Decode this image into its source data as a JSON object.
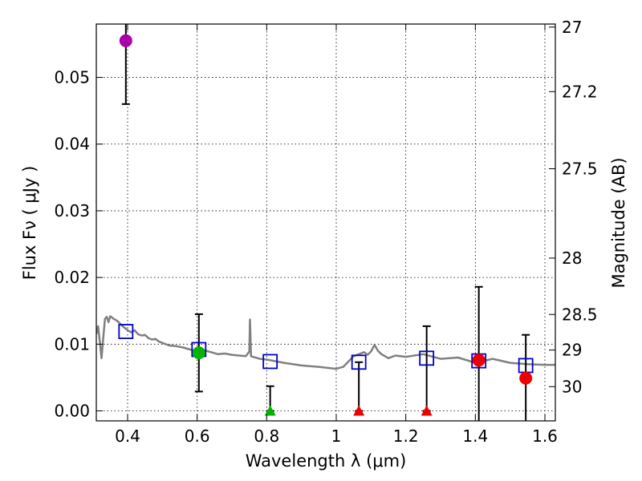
{
  "chart_data": {
    "type": "scatter",
    "xlabel": "Wavelength  λ (μm)",
    "ylabel": "Flux  Fν  ( μJy )",
    "ylabel_right": "Magnitude (AB)",
    "xlim": [
      0.31,
      1.63
    ],
    "ylim": [
      -0.0015,
      0.058
    ],
    "grid": true,
    "x_ticks": [
      {
        "value": 0.4,
        "label": "0.4"
      },
      {
        "value": 0.6,
        "label": "0.6"
      },
      {
        "value": 0.8,
        "label": "0.8"
      },
      {
        "value": 1.0,
        "label": "1"
      },
      {
        "value": 1.2,
        "label": "1.2"
      },
      {
        "value": 1.4,
        "label": "1.4"
      },
      {
        "value": 1.6,
        "label": "1.6"
      }
    ],
    "y_ticks": [
      {
        "value": 0.0,
        "label": "0.00"
      },
      {
        "value": 0.01,
        "label": "0.01"
      },
      {
        "value": 0.02,
        "label": "0.02"
      },
      {
        "value": 0.03,
        "label": "0.03"
      },
      {
        "value": 0.04,
        "label": "0.04"
      },
      {
        "value": 0.05,
        "label": "0.05"
      }
    ],
    "mag_ticks": [
      {
        "mag": 27,
        "label": "27"
      },
      {
        "mag": 27.2,
        "label": "27.2"
      },
      {
        "mag": 27.5,
        "label": "27.5"
      },
      {
        "mag": 28,
        "label": "28"
      },
      {
        "mag": 28.5,
        "label": "28.5"
      },
      {
        "mag": 29,
        "label": "29"
      },
      {
        "mag": 30,
        "label": "30"
      }
    ],
    "model_sed": {
      "name": "model spectrum",
      "color": "#808080",
      "x": [
        0.31,
        0.315,
        0.32,
        0.325,
        0.33,
        0.335,
        0.34,
        0.345,
        0.35,
        0.36,
        0.37,
        0.38,
        0.39,
        0.4,
        0.41,
        0.42,
        0.43,
        0.44,
        0.45,
        0.46,
        0.47,
        0.48,
        0.49,
        0.5,
        0.52,
        0.54,
        0.56,
        0.58,
        0.6,
        0.62,
        0.64,
        0.66,
        0.68,
        0.7,
        0.72,
        0.74,
        0.75,
        0.752,
        0.755,
        0.76,
        0.78,
        0.8,
        0.85,
        0.9,
        0.95,
        1.0,
        1.02,
        1.05,
        1.08,
        1.09,
        1.1,
        1.11,
        1.12,
        1.13,
        1.15,
        1.17,
        1.2,
        1.25,
        1.3,
        1.35,
        1.4,
        1.45,
        1.5,
        1.55,
        1.6,
        1.63
      ],
      "y": [
        0.0115,
        0.0127,
        0.0105,
        0.0079,
        0.011,
        0.0138,
        0.0141,
        0.0133,
        0.0142,
        0.0138,
        0.0135,
        0.013,
        0.0125,
        0.0121,
        0.0118,
        0.0121,
        0.0115,
        0.0113,
        0.0114,
        0.0109,
        0.0107,
        0.0108,
        0.0104,
        0.0102,
        0.0098,
        0.0097,
        0.0095,
        0.0092,
        0.0089,
        0.0091,
        0.0088,
        0.0085,
        0.0086,
        0.0084,
        0.0083,
        0.0082,
        0.0089,
        0.0137,
        0.0082,
        0.0081,
        0.0078,
        0.0077,
        0.0072,
        0.0068,
        0.0066,
        0.0063,
        0.0066,
        0.0082,
        0.0088,
        0.0084,
        0.0089,
        0.0099,
        0.009,
        0.0085,
        0.0079,
        0.0083,
        0.0081,
        0.0085,
        0.0078,
        0.008,
        0.0072,
        0.0078,
        0.0072,
        0.007,
        0.0069,
        0.0069
      ]
    },
    "model_photometry": {
      "name": "model band flux",
      "color": "#0000cc",
      "x": [
        0.395,
        0.605,
        0.81,
        1.065,
        1.26,
        1.41,
        1.545
      ],
      "y": [
        0.0119,
        0.0092,
        0.0074,
        0.0073,
        0.0079,
        0.0075,
        0.0068
      ]
    },
    "detections": [
      {
        "x": 0.395,
        "y": 0.0555,
        "yerr": 0.0095,
        "color": "#aa00aa"
      },
      {
        "x": 0.605,
        "y": 0.0087,
        "yerr": 0.0058,
        "color": "#00b400"
      },
      {
        "x": 1.41,
        "y": 0.0076,
        "yerr": 0.011,
        "color": "#ee0000"
      },
      {
        "x": 1.545,
        "y": 0.0049,
        "yerr": 0.0065,
        "color": "#ee0000"
      }
    ],
    "upper_limits": [
      {
        "x": 0.81,
        "y": 0.0,
        "yerr_up": 0.0037,
        "color": "#00b400"
      },
      {
        "x": 1.065,
        "y": 0.0,
        "yerr_up": 0.0073,
        "color": "#ee0000"
      },
      {
        "x": 1.26,
        "y": 0.0,
        "yerr_up": 0.0127,
        "color": "#ee0000"
      }
    ]
  }
}
